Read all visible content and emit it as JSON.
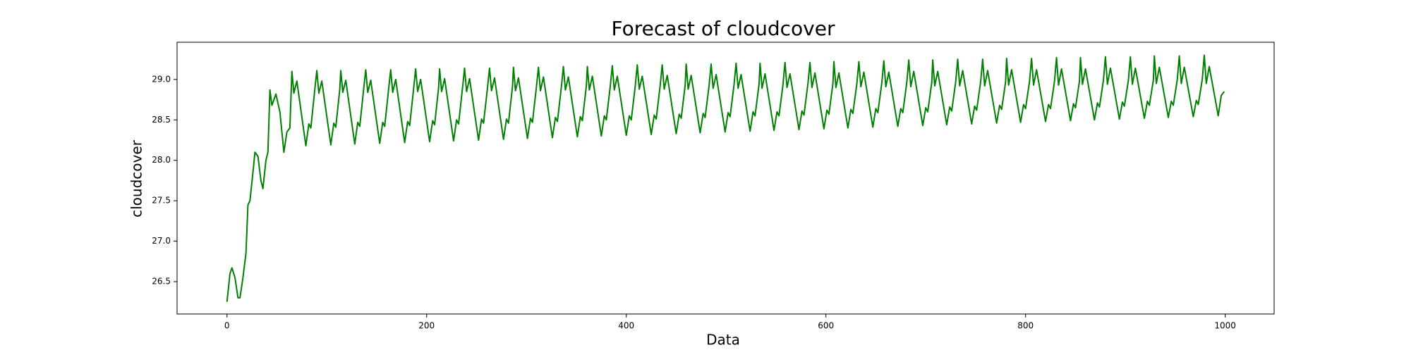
{
  "chart_data": {
    "type": "line",
    "title": "Forecast of cloudcover",
    "x_label": "Data",
    "y_label": "cloudcover",
    "color": "#008000",
    "xlim": [
      -50,
      1049
    ],
    "ylim": [
      26.1,
      29.46
    ],
    "xticks": [
      0,
      200,
      400,
      600,
      800,
      1000
    ],
    "yticks": [
      {
        "value": 26.5,
        "label": "26.5"
      },
      {
        "value": 27,
        "label": "27.0"
      },
      {
        "value": 27.5,
        "label": "27.5"
      },
      {
        "value": 28,
        "label": "28.0"
      },
      {
        "value": 28.5,
        "label": "28.5"
      },
      {
        "value": 29,
        "label": "29.0"
      }
    ],
    "x": [
      0,
      3,
      5,
      8,
      11,
      13,
      16,
      19,
      21,
      23,
      26,
      28,
      31,
      34,
      36,
      39,
      41,
      43,
      45,
      49,
      53,
      57,
      60,
      63,
      65,
      67,
      70,
      79,
      82,
      84,
      88,
      90,
      92,
      95,
      104,
      107,
      109,
      113,
      114,
      116,
      119,
      128,
      131,
      133,
      137,
      139,
      141,
      144,
      153,
      156,
      158,
      162,
      164,
      166,
      169,
      178,
      181,
      183,
      187,
      189,
      191,
      194,
      203,
      206,
      208,
      212,
      213,
      215,
      218,
      227,
      230,
      232,
      236,
      238,
      240,
      243,
      252,
      255,
      257,
      261,
      263,
      265,
      268,
      277,
      280,
      282,
      286,
      287,
      289,
      292,
      301,
      304,
      306,
      310,
      312,
      314,
      317,
      326,
      329,
      331,
      335,
      337,
      339,
      342,
      351,
      354,
      356,
      360,
      361,
      363,
      366,
      375,
      378,
      380,
      384,
      386,
      388,
      391,
      400,
      403,
      405,
      409,
      411,
      413,
      416,
      425,
      428,
      430,
      434,
      436,
      438,
      441,
      450,
      453,
      455,
      459,
      460,
      462,
      465,
      474,
      477,
      479,
      483,
      485,
      487,
      490,
      499,
      502,
      504,
      508,
      510,
      512,
      515,
      524,
      527,
      529,
      533,
      534,
      536,
      539,
      548,
      551,
      553,
      557,
      559,
      561,
      564,
      573,
      576,
      578,
      582,
      584,
      586,
      589,
      598,
      601,
      603,
      607,
      608,
      610,
      613,
      622,
      625,
      627,
      631,
      633,
      635,
      638,
      647,
      650,
      652,
      656,
      658,
      660,
      663,
      672,
      675,
      677,
      681,
      683,
      685,
      688,
      697,
      700,
      702,
      706,
      707,
      709,
      712,
      721,
      724,
      726,
      730,
      732,
      734,
      737,
      746,
      749,
      751,
      755,
      757,
      759,
      762,
      771,
      774,
      776,
      780,
      781,
      783,
      786,
      795,
      798,
      800,
      804,
      806,
      808,
      811,
      820,
      823,
      825,
      829,
      831,
      833,
      836,
      845,
      848,
      850,
      854,
      855,
      857,
      860,
      869,
      872,
      874,
      878,
      880,
      882,
      885,
      894,
      897,
      899,
      903,
      905,
      907,
      910,
      919,
      922,
      924,
      928,
      929,
      931,
      934,
      943,
      946,
      948,
      952,
      954,
      956,
      959,
      968,
      971,
      973,
      977,
      979,
      981,
      984,
      993,
      996,
      999
    ],
    "values": [
      26.25,
      26.6,
      26.67,
      26.55,
      26.3,
      26.3,
      26.55,
      26.85,
      27.45,
      27.5,
      27.85,
      28.1,
      28.05,
      27.75,
      27.65,
      28.0,
      28.1,
      28.87,
      28.68,
      28.82,
      28.6,
      28.1,
      28.35,
      28.4,
      29.1,
      28.83,
      28.98,
      28.18,
      28.45,
      28.4,
      28.88,
      29.11,
      28.83,
      28.98,
      28.19,
      28.46,
      28.41,
      28.88,
      29.11,
      28.84,
      28.99,
      28.2,
      28.47,
      28.42,
      28.89,
      29.12,
      28.84,
      28.99,
      28.21,
      28.47,
      28.42,
      28.89,
      29.12,
      28.84,
      29.0,
      28.22,
      28.48,
      28.43,
      28.89,
      29.13,
      28.85,
      29.0,
      28.23,
      28.49,
      28.44,
      28.9,
      29.13,
      28.85,
      29.01,
      28.24,
      28.5,
      28.45,
      28.9,
      29.14,
      28.85,
      29.01,
      28.25,
      28.51,
      28.46,
      28.9,
      29.14,
      28.86,
      29.02,
      28.26,
      28.51,
      28.46,
      28.91,
      29.15,
      28.86,
      29.02,
      28.27,
      28.52,
      28.47,
      28.91,
      29.15,
      28.86,
      29.03,
      28.28,
      28.53,
      28.48,
      28.91,
      29.16,
      28.87,
      29.03,
      28.29,
      28.54,
      28.49,
      28.92,
      29.16,
      28.87,
      29.04,
      28.3,
      28.55,
      28.5,
      28.92,
      29.17,
      28.87,
      29.04,
      28.31,
      28.55,
      28.5,
      28.92,
      29.18,
      28.88,
      29.04,
      28.32,
      28.56,
      28.51,
      28.93,
      29.18,
      28.88,
      29.05,
      28.33,
      28.57,
      28.52,
      28.93,
      29.19,
      28.88,
      29.05,
      28.34,
      28.58,
      28.53,
      28.93,
      29.19,
      28.89,
      29.06,
      28.35,
      28.59,
      28.54,
      28.94,
      29.2,
      28.89,
      29.06,
      28.36,
      28.6,
      28.55,
      28.94,
      29.2,
      28.89,
      29.07,
      28.37,
      28.6,
      28.55,
      28.94,
      29.21,
      28.9,
      29.07,
      28.38,
      28.61,
      28.56,
      28.95,
      29.21,
      28.9,
      29.08,
      28.39,
      28.62,
      28.57,
      28.95,
      29.22,
      28.9,
      29.08,
      28.4,
      28.63,
      28.58,
      28.95,
      29.22,
      28.91,
      29.09,
      28.41,
      28.64,
      28.59,
      28.96,
      29.23,
      28.91,
      29.09,
      28.42,
      28.64,
      28.59,
      28.96,
      29.24,
      28.91,
      29.1,
      28.43,
      28.65,
      28.6,
      28.96,
      29.24,
      28.92,
      29.1,
      28.44,
      28.66,
      28.61,
      28.97,
      29.25,
      28.92,
      29.11,
      28.45,
      28.67,
      28.62,
      28.97,
      29.25,
      28.92,
      29.11,
      28.46,
      28.68,
      28.63,
      28.97,
      29.26,
      28.93,
      29.12,
      28.47,
      28.69,
      28.64,
      28.98,
      29.26,
      28.93,
      29.12,
      28.48,
      28.69,
      28.64,
      28.98,
      29.27,
      28.93,
      29.13,
      28.49,
      28.7,
      28.65,
      28.98,
      29.27,
      28.94,
      29.13,
      28.5,
      28.71,
      28.66,
      28.99,
      29.28,
      28.94,
      29.14,
      28.51,
      28.72,
      28.67,
      28.99,
      29.28,
      28.94,
      29.14,
      28.52,
      28.73,
      28.68,
      28.99,
      29.29,
      28.95,
      29.15,
      28.53,
      28.73,
      28.68,
      29.0,
      29.29,
      28.95,
      29.15,
      28.54,
      28.74,
      28.69,
      29.0,
      29.3,
      28.95,
      29.16,
      28.55,
      28.8,
      28.85
    ]
  }
}
